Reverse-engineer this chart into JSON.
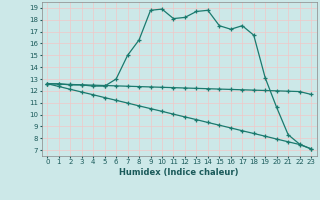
{
  "xlabel": "Humidex (Indice chaleur)",
  "background_color": "#cce8e8",
  "grid_color": "#f0c8c8",
  "line_color": "#1a7a6e",
  "xlim": [
    -0.5,
    23.5
  ],
  "ylim": [
    6.5,
    19.5
  ],
  "xticks": [
    0,
    1,
    2,
    3,
    4,
    5,
    6,
    7,
    8,
    9,
    10,
    11,
    12,
    13,
    14,
    15,
    16,
    17,
    18,
    19,
    20,
    21,
    22,
    23
  ],
  "yticks": [
    7,
    8,
    9,
    10,
    11,
    12,
    13,
    14,
    15,
    16,
    17,
    18,
    19
  ],
  "series": [
    {
      "x": [
        0,
        1,
        2,
        3,
        4,
        5,
        6,
        7,
        8,
        9,
        10,
        11,
        12,
        13,
        14,
        15,
        16,
        17,
        18,
        19,
        20,
        21,
        22,
        23
      ],
      "y": [
        12.6,
        12.6,
        12.5,
        12.5,
        12.4,
        12.4,
        13.0,
        15.0,
        16.3,
        18.8,
        18.9,
        18.1,
        18.2,
        18.7,
        18.8,
        17.5,
        17.2,
        17.5,
        16.7,
        13.1,
        10.6,
        8.3,
        7.5,
        7.1
      ],
      "has_markers": true
    },
    {
      "x": [
        0,
        1,
        2,
        3,
        4,
        5,
        6,
        7,
        8,
        9,
        10,
        11,
        12,
        13,
        14,
        15,
        16,
        17,
        18,
        19,
        20,
        21,
        22,
        23
      ],
      "y": [
        12.6,
        12.57,
        12.54,
        12.51,
        12.48,
        12.45,
        12.42,
        12.39,
        12.36,
        12.33,
        12.3,
        12.27,
        12.24,
        12.21,
        12.18,
        12.15,
        12.12,
        12.09,
        12.06,
        12.03,
        12.0,
        11.97,
        11.94,
        11.7
      ],
      "has_markers": true
    },
    {
      "x": [
        0,
        1,
        2,
        3,
        4,
        5,
        6,
        7,
        8,
        9,
        10,
        11,
        12,
        13,
        14,
        15,
        16,
        17,
        18,
        19,
        20,
        21,
        22,
        23
      ],
      "y": [
        12.6,
        12.37,
        12.13,
        11.9,
        11.67,
        11.43,
        11.2,
        10.97,
        10.73,
        10.5,
        10.27,
        10.03,
        9.8,
        9.57,
        9.33,
        9.1,
        8.87,
        8.63,
        8.4,
        8.17,
        7.93,
        7.7,
        7.47,
        7.1
      ],
      "has_markers": true
    }
  ]
}
